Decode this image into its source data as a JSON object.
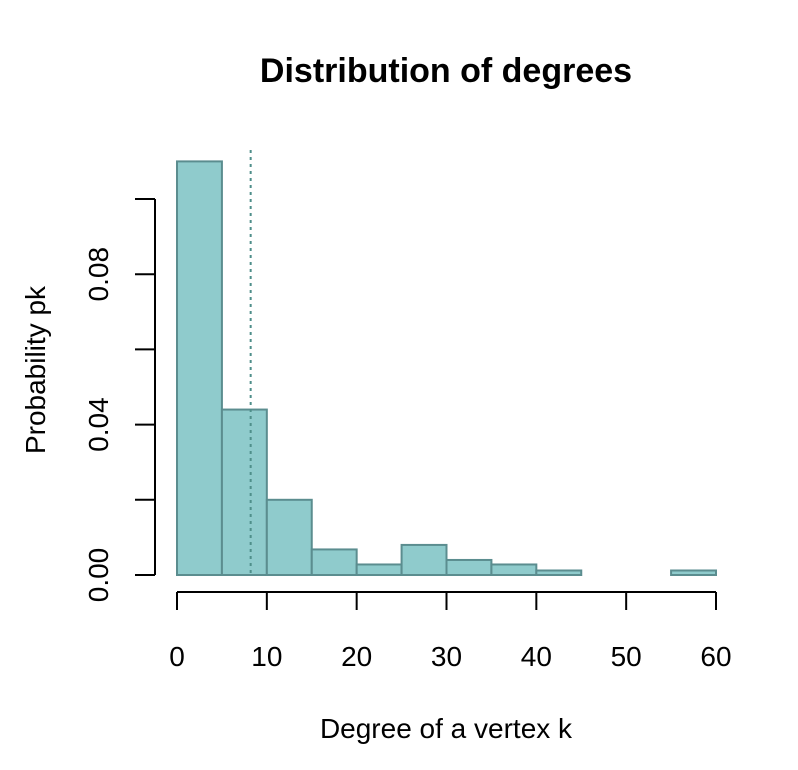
{
  "chart_data": {
    "type": "bar",
    "title": "Distribution of degrees",
    "xlabel": "Degree of a vertex k",
    "ylabel": "Probability pk",
    "bins": [
      {
        "x0": 0,
        "x1": 5,
        "value": 0.11
      },
      {
        "x0": 5,
        "x1": 10,
        "value": 0.044
      },
      {
        "x0": 10,
        "x1": 15,
        "value": 0.02
      },
      {
        "x0": 15,
        "x1": 20,
        "value": 0.0068
      },
      {
        "x0": 20,
        "x1": 25,
        "value": 0.0028
      },
      {
        "x0": 25,
        "x1": 30,
        "value": 0.008
      },
      {
        "x0": 30,
        "x1": 35,
        "value": 0.004
      },
      {
        "x0": 35,
        "x1": 40,
        "value": 0.0028
      },
      {
        "x0": 40,
        "x1": 45,
        "value": 0.0012
      },
      {
        "x0": 45,
        "x1": 50,
        "value": 0.0
      },
      {
        "x0": 50,
        "x1": 55,
        "value": 0.0
      },
      {
        "x0": 55,
        "x1": 60,
        "value": 0.0012
      }
    ],
    "mean_line_x": 8.2,
    "x_ticks": [
      "0",
      "10",
      "20",
      "30",
      "40",
      "50",
      "60"
    ],
    "y_ticks": [
      0.0,
      0.02,
      0.04,
      0.06,
      0.08,
      0.1
    ],
    "y_tick_labels": [
      "0.00",
      "",
      "0.04",
      "",
      "0.08",
      ""
    ],
    "xlim": [
      0,
      60
    ],
    "ylim": [
      0,
      0.1
    ],
    "grid": false,
    "bar_fill": "#8fcbcc",
    "bar_stroke": "#5b8d8f",
    "mean_line_color": "#4f8f8a"
  }
}
